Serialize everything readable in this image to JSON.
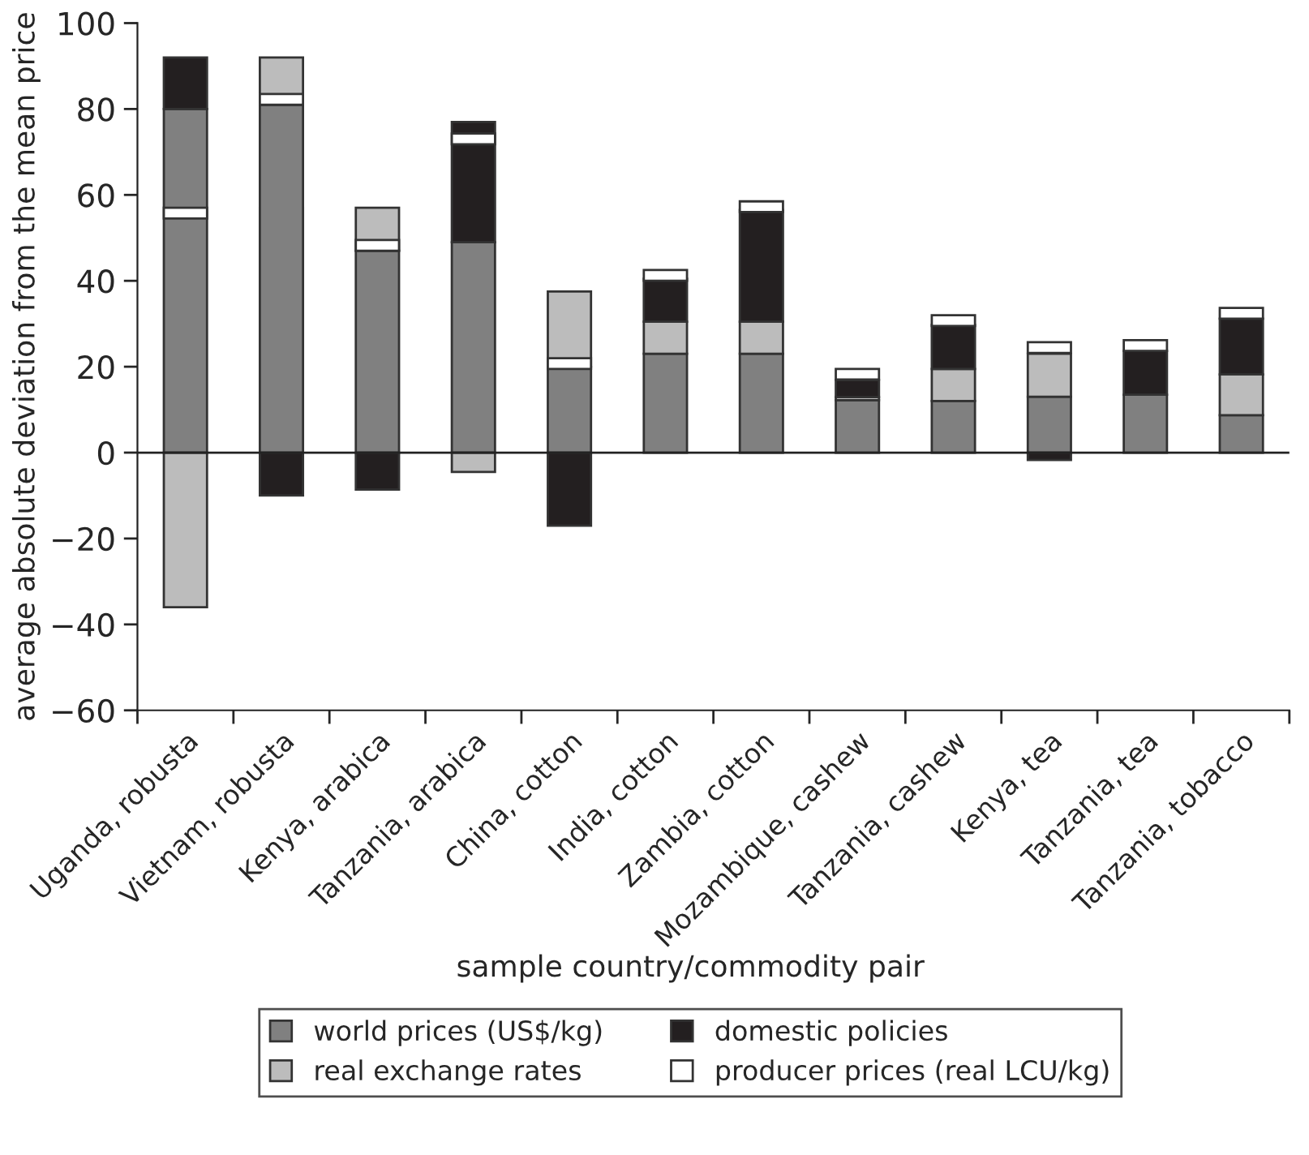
{
  "chart_data": {
    "type": "bar",
    "ylabel": "average absolute deviation from the mean price",
    "xlabel": "sample country/commodity pair",
    "categories": [
      "Uganda, robusta",
      "Vietnam, robusta",
      "Kenya, arabica",
      "Tanzania, arabica",
      "China, cotton",
      "India, cotton",
      "Zambia, cotton",
      "Mozambique, cashew",
      "Tanzania, cashew",
      "Kenya, tea",
      "Tanzania, tea",
      "Tanzania, tobacco"
    ],
    "series": [
      {
        "name": "world prices (US$/kg)",
        "color": "#808080",
        "base": [
          0,
          0,
          0,
          0,
          0,
          0,
          0,
          0,
          0,
          0,
          0,
          0
        ],
        "values": [
          80,
          81,
          47,
          49,
          20,
          23,
          23,
          12.2,
          12,
          13,
          13.5,
          8.7
        ]
      },
      {
        "name": "real exchange rates",
        "color": "#bcbcbc",
        "base": [
          0,
          81,
          47,
          0,
          20,
          23,
          23,
          12.2,
          12,
          13,
          null,
          8.7
        ],
        "values": [
          -36,
          11,
          10,
          -4.5,
          17.5,
          7.5,
          7.5,
          0.7,
          7.5,
          10,
          null,
          9.5
        ]
      },
      {
        "name": "domestic policies",
        "color": "#231f20",
        "base": [
          80,
          0,
          0,
          49,
          0,
          30.5,
          30.5,
          12.9,
          19.5,
          0,
          13.5,
          18.2
        ],
        "values": [
          12,
          -10,
          -8.6,
          28,
          -17,
          10,
          26,
          4,
          10.2,
          -1.7,
          10.2,
          13
        ]
      },
      {
        "name": "producer prices (real LCU/kg)",
        "color": "#ffffff",
        "base": [
          54.5,
          81,
          47,
          71.8,
          19.5,
          40,
          56,
          17,
          29.5,
          23.2,
          23.7,
          31.2
        ],
        "values": [
          2.5,
          2.5,
          2.5,
          2.5,
          2.5,
          2.5,
          2.5,
          2.5,
          2.5,
          2.5,
          2.5,
          2.5
        ]
      }
    ],
    "ylim": [
      -60,
      100
    ],
    "yticks": [
      -60,
      -40,
      -20,
      0,
      20,
      40,
      60,
      80,
      100
    ],
    "ref_lines": [
      {
        "axis": "y",
        "value": 0,
        "label": null
      }
    ],
    "legend": "bottom"
  }
}
